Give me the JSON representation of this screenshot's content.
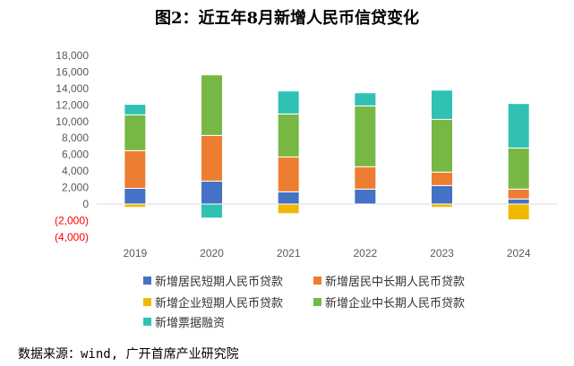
{
  "title": "图2：近五年8月新增人民币信贷变化",
  "source": "数据来源：wind, 广开首席产业研究院",
  "chart_data": {
    "type": "bar",
    "stacked": true,
    "categories": [
      "2019",
      "2020",
      "2021",
      "2022",
      "2023",
      "2024"
    ],
    "ylim": [
      -4000,
      18000
    ],
    "yticks": [
      -4000,
      -2000,
      0,
      2000,
      4000,
      6000,
      8000,
      10000,
      12000,
      14000,
      16000,
      18000
    ],
    "ytick_labels": [
      "(4,000)",
      "(2,000)",
      "0",
      "2,000",
      "4,000",
      "6,000",
      "8,000",
      "10,000",
      "12,000",
      "14,000",
      "16,000",
      "18,000"
    ],
    "negative_label_color": "#ff0000",
    "grid": false,
    "legend_placement": "bottom",
    "series": [
      {
        "name": "新增居民短期人民币贷款",
        "color": "#4472c4",
        "values": [
          1900,
          2780,
          1480,
          1810,
          2240,
          610
        ]
      },
      {
        "name": "新增居民中长期人民币贷款",
        "color": "#ed7d31",
        "values": [
          4570,
          5530,
          4230,
          2710,
          1630,
          1200
        ]
      },
      {
        "name": "新增企业短期人民币贷款",
        "color": "#f0b800",
        "values": [
          -400,
          0,
          -1160,
          0,
          -400,
          -1920
        ]
      },
      {
        "name": "新增企业中长期人民币贷款",
        "color": "#76b843",
        "values": [
          4340,
          7340,
          5200,
          7370,
          6390,
          4980
        ]
      },
      {
        "name": "新增票据融资",
        "color": "#30c1b4",
        "values": [
          1270,
          -1700,
          2790,
          1590,
          3540,
          5390
        ]
      }
    ]
  }
}
